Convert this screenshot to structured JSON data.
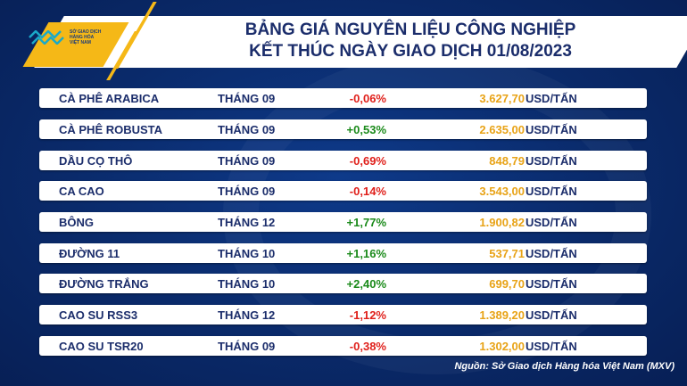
{
  "logo": {
    "lines": [
      "SỞ GIAO DỊCH",
      "HÀNG HÓA",
      "VIỆT NAM"
    ]
  },
  "title": {
    "line1": "BẢNG GIÁ NGUYÊN LIỆU CÔNG NGHIỆP",
    "line2": "KẾT THÚC NGÀY GIAO DỊCH 01/08/2023"
  },
  "rows": [
    {
      "name": "CÀ PHÊ ARABICA",
      "month": "THÁNG 09",
      "change": "-0,06%",
      "price": "3.627,70",
      "unit": "USD/TẤN"
    },
    {
      "name": "CÀ PHÊ ROBUSTA",
      "month": "THÁNG 09",
      "change": "+0,53%",
      "price": "2.635,00",
      "unit": "USD/TẤN"
    },
    {
      "name": "DẦU CỌ THÔ",
      "month": "THÁNG 09",
      "change": "-0,69%",
      "price": "848,79",
      "unit": "USD/TẤN"
    },
    {
      "name": "CA CAO",
      "month": "THÁNG 09",
      "change": "-0,14%",
      "price": "3.543,00",
      "unit": "USD/TẤN"
    },
    {
      "name": "BÔNG",
      "month": "THÁNG 12",
      "change": "+1,77%",
      "price": "1.900,82",
      "unit": "USD/TẤN"
    },
    {
      "name": "ĐƯỜNG 11",
      "month": "THÁNG 10",
      "change": "+1,16%",
      "price": "537,71",
      "unit": "USD/TẤN"
    },
    {
      "name": "ĐƯỜNG TRẮNG",
      "month": "THÁNG 10",
      "change": "+2,40%",
      "price": "699,70",
      "unit": "USD/TẤN"
    },
    {
      "name": "CAO SU RSS3",
      "month": "THÁNG 12",
      "change": "-1,12%",
      "price": "1.389,20",
      "unit": "USD/TẤN"
    },
    {
      "name": "CAO SU TSR20",
      "month": "THÁNG 09",
      "change": "-0,38%",
      "price": "1.302,00",
      "unit": "USD/TẤN"
    }
  ],
  "source": "Nguồn: Sở Giao dịch Hàng hóa Việt Nam (MXV)",
  "colors": {
    "negative": "#e0201b",
    "positive": "#1a8a1a",
    "price": "#e8a317",
    "text": "#1b2d6b"
  }
}
